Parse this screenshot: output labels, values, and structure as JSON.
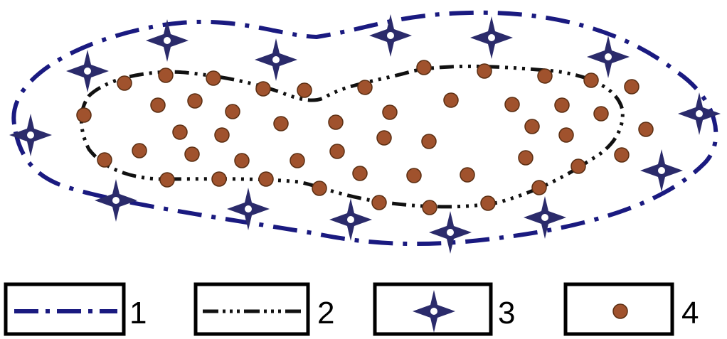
{
  "colors": {
    "outer_contour": "#1a1a80",
    "inner_contour": "#111111",
    "well_marker": "#2b2b6b",
    "dot_fill": "#a0522d",
    "dot_stroke": "#5a2e12"
  },
  "diagram": {
    "outer_contour_style": "dash-dot",
    "inner_contour_style": "dash-dot-dot-dot",
    "marker_icon": "four-point-star-with-ring",
    "dot_icon": "filled-circle"
  },
  "legend": {
    "items": [
      {
        "number": "1",
        "symbol": "outer-dash-dot-line"
      },
      {
        "number": "2",
        "symbol": "inner-dash-dot-dot-line"
      },
      {
        "number": "3",
        "symbol": "star-marker"
      },
      {
        "number": "4",
        "symbol": "brown-dot"
      }
    ]
  }
}
